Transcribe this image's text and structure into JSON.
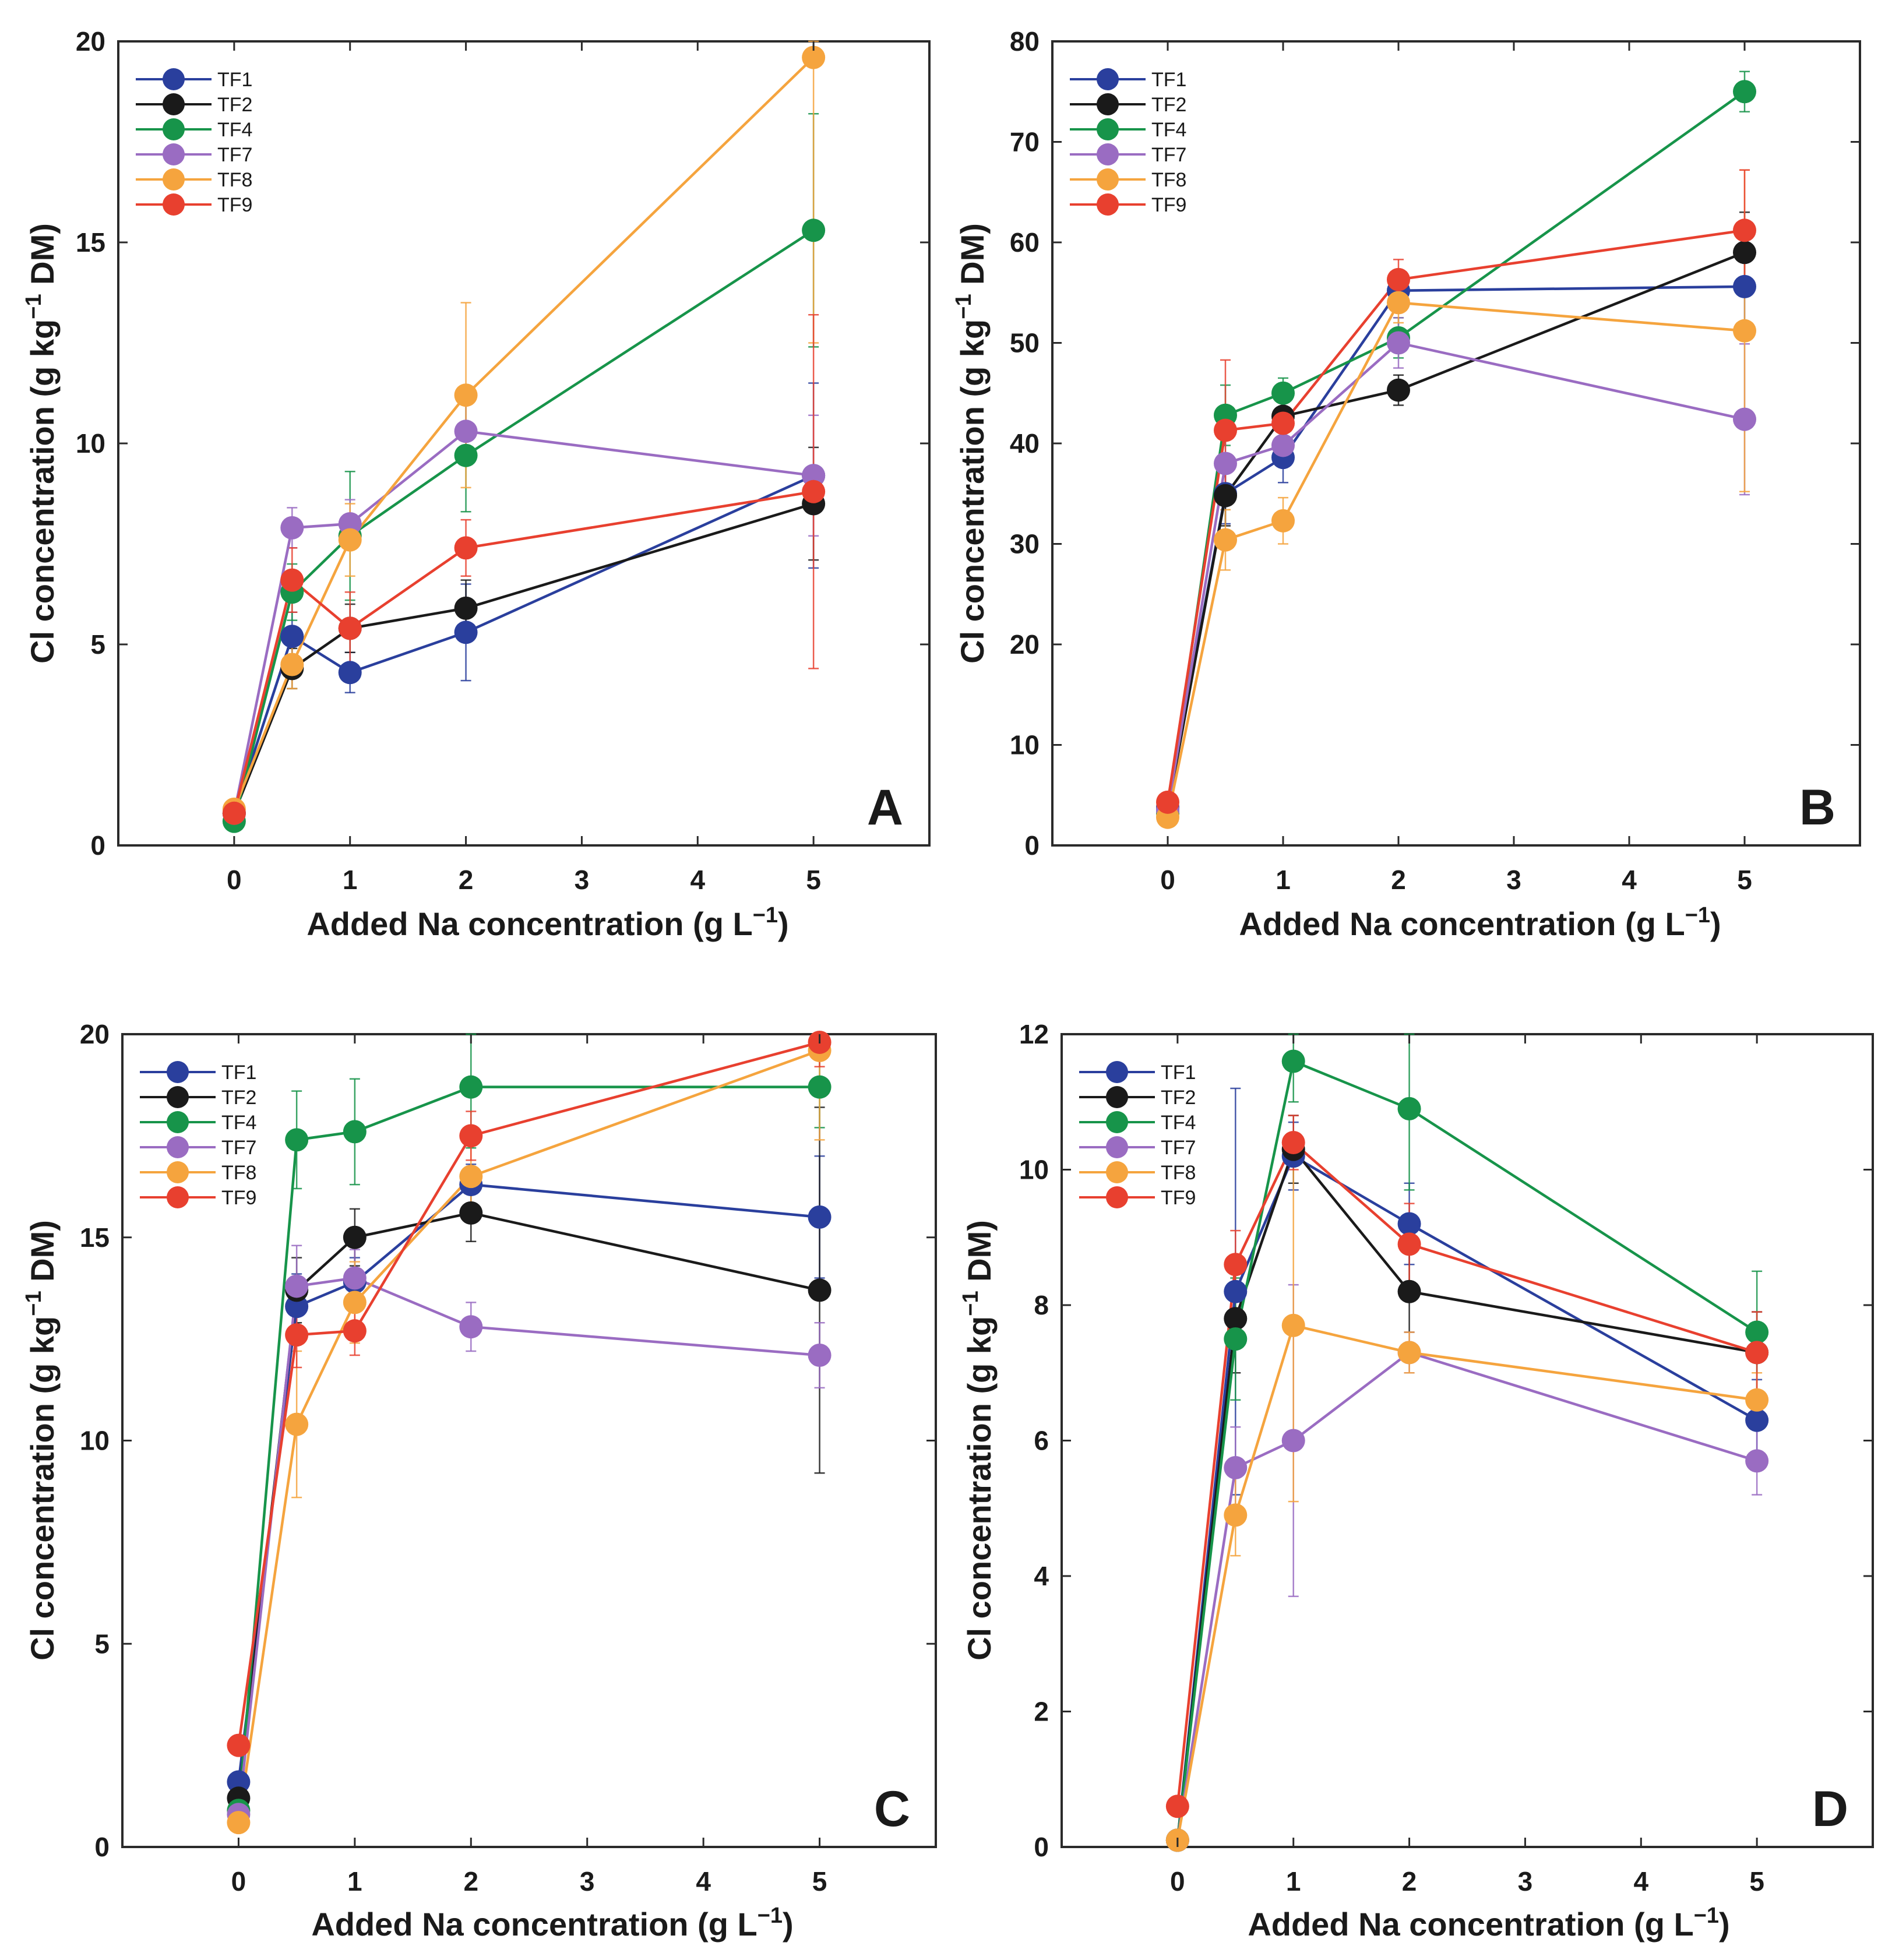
{
  "series_styles": [
    {
      "name": "TF1",
      "color": "#2a3f9d"
    },
    {
      "name": "TF2",
      "color": "#1a1a1a"
    },
    {
      "name": "TF4",
      "color": "#17944a"
    },
    {
      "name": "TF7",
      "color": "#9a6cc2"
    },
    {
      "name": "TF8",
      "color": "#f5a43e"
    },
    {
      "name": "TF9",
      "color": "#e8402f"
    }
  ],
  "chart_data": [
    {
      "panel": "A",
      "type": "line",
      "xlabel": "Added Na concentration (g L",
      "xlabel_sup": "−1",
      "xlabel_end": ")",
      "ylabel": "Cl concentration (g kg",
      "ylabel_sup": "−1",
      "ylabel_end": " DM)",
      "xlim": [
        -1,
        6
      ],
      "ylim": [
        0,
        20
      ],
      "xticks": [
        0,
        1,
        2,
        3,
        4,
        5
      ],
      "yticks": [
        0,
        5,
        10,
        15,
        20
      ],
      "legend_position": "top-left",
      "x": [
        0,
        0.5,
        1,
        2,
        5
      ],
      "series": [
        {
          "name": "TF1",
          "values": [
            0.8,
            5.2,
            4.3,
            5.3,
            9.2
          ],
          "errors": [
            0.1,
            0.6,
            0.5,
            1.2,
            2.3
          ]
        },
        {
          "name": "TF2",
          "values": [
            0.8,
            4.4,
            5.4,
            5.9,
            8.5
          ],
          "errors": [
            0.1,
            0.5,
            0.6,
            0.7,
            1.4
          ]
        },
        {
          "name": "TF4",
          "values": [
            0.6,
            6.3,
            7.7,
            9.7,
            15.3
          ],
          "errors": [
            0.1,
            0.7,
            1.6,
            1.4,
            2.9
          ]
        },
        {
          "name": "TF7",
          "values": [
            0.8,
            7.9,
            8.0,
            10.3,
            9.2
          ],
          "errors": [
            0.1,
            0.5,
            0.6,
            0.8,
            1.5
          ]
        },
        {
          "name": "TF8",
          "values": [
            0.9,
            4.5,
            7.6,
            11.2,
            19.6
          ],
          "errors": [
            0.1,
            0.6,
            0.9,
            2.3,
            7.1
          ]
        },
        {
          "name": "TF9",
          "values": [
            0.8,
            6.6,
            5.4,
            7.4,
            8.8
          ],
          "errors": [
            0.1,
            0.8,
            0.9,
            0.7,
            4.4
          ]
        }
      ]
    },
    {
      "panel": "B",
      "type": "line",
      "xlabel": "Added Na concentration (g L",
      "xlabel_sup": "−1",
      "xlabel_end": ")",
      "ylabel": "Cl concentration (g kg",
      "ylabel_sup": "−1",
      "ylabel_end": " DM)",
      "xlim": [
        -1,
        6
      ],
      "ylim": [
        0,
        80
      ],
      "xticks": [
        0,
        1,
        2,
        3,
        4,
        5
      ],
      "yticks": [
        0,
        10,
        20,
        30,
        40,
        50,
        60,
        70,
        80
      ],
      "legend_position": "top-left",
      "x": [
        0,
        0.5,
        1,
        2,
        5
      ],
      "series": [
        {
          "name": "TF1",
          "values": [
            3.8,
            35.0,
            38.6,
            55.2,
            55.6
          ],
          "errors": [
            0.4,
            3.0,
            2.5,
            2.0,
            5.0
          ]
        },
        {
          "name": "TF2",
          "values": [
            3.5,
            34.8,
            42.7,
            45.3,
            59.0
          ],
          "errors": [
            0.4,
            3.0,
            2.0,
            1.5,
            4.0
          ]
        },
        {
          "name": "TF4",
          "values": [
            3.2,
            42.8,
            45.0,
            50.5,
            75.0
          ],
          "errors": [
            0.4,
            3.0,
            1.5,
            2.0,
            2.0
          ]
        },
        {
          "name": "TF7",
          "values": [
            3.5,
            38.0,
            39.8,
            50.0,
            42.4
          ],
          "errors": [
            0.4,
            3.0,
            2.0,
            2.5,
            7.5
          ]
        },
        {
          "name": "TF8",
          "values": [
            2.8,
            30.4,
            32.3,
            54.0,
            51.2
          ],
          "errors": [
            0.4,
            3.0,
            2.3,
            2.0,
            16.0
          ]
        },
        {
          "name": "TF9",
          "values": [
            4.3,
            41.3,
            42.0,
            56.3,
            61.2
          ],
          "errors": [
            0.4,
            7.0,
            2.5,
            2.0,
            6.0
          ]
        }
      ]
    },
    {
      "panel": "C",
      "type": "line",
      "xlabel": "Added Na concentration (g L",
      "xlabel_sup": "−1",
      "xlabel_end": ")",
      "ylabel": "Cl concentration (g kg",
      "ylabel_sup": "−1",
      "ylabel_end": " DM)",
      "xlim": [
        -1,
        6
      ],
      "ylim": [
        0,
        20
      ],
      "xticks": [
        0,
        1,
        2,
        3,
        4,
        5
      ],
      "yticks": [
        0,
        5,
        10,
        15,
        20
      ],
      "legend_position": "top-left",
      "x": [
        0,
        0.5,
        1,
        2,
        5
      ],
      "series": [
        {
          "name": "TF1",
          "values": [
            1.6,
            13.3,
            13.9,
            16.3,
            15.5
          ],
          "errors": [
            0.2,
            0.8,
            0.6,
            0.5,
            1.5
          ]
        },
        {
          "name": "TF2",
          "values": [
            1.2,
            13.7,
            15.0,
            15.6,
            13.7
          ],
          "errors": [
            0.2,
            0.8,
            0.7,
            0.7,
            4.5
          ]
        },
        {
          "name": "TF4",
          "values": [
            0.9,
            17.4,
            17.6,
            18.7,
            18.7
          ],
          "errors": [
            0.2,
            1.2,
            1.3,
            1.5,
            1.0
          ]
        },
        {
          "name": "TF7",
          "values": [
            0.8,
            13.8,
            14.0,
            12.8,
            12.1
          ],
          "errors": [
            0.1,
            1.0,
            0.7,
            0.6,
            0.8
          ]
        },
        {
          "name": "TF8",
          "values": [
            0.6,
            10.4,
            13.4,
            16.5,
            19.6
          ],
          "errors": [
            0.1,
            1.8,
            1.0,
            1.0,
            2.2
          ]
        },
        {
          "name": "TF9",
          "values": [
            2.5,
            12.6,
            12.7,
            17.5,
            19.8
          ],
          "errors": [
            0.2,
            0.8,
            0.6,
            0.6,
            0.6
          ]
        }
      ]
    },
    {
      "panel": "D",
      "type": "line",
      "xlabel": "Added Na concentration (g L",
      "xlabel_sup": "−1",
      "xlabel_end": ")",
      "ylabel": "Cl concentration (g kg",
      "ylabel_sup": "−1",
      "ylabel_end": " DM)",
      "xlim": [
        -1,
        6
      ],
      "ylim": [
        0,
        12
      ],
      "xticks": [
        0,
        1,
        2,
        3,
        4,
        5
      ],
      "yticks": [
        0,
        2,
        4,
        6,
        8,
        10,
        12
      ],
      "legend_position": "top-left",
      "x": [
        0,
        0.5,
        1,
        2,
        5
      ],
      "series": [
        {
          "name": "TF1",
          "values": [
            0.1,
            8.2,
            10.2,
            9.2,
            6.3
          ],
          "errors": [
            0.05,
            3.0,
            0.5,
            0.6,
            0.6
          ]
        },
        {
          "name": "TF2",
          "values": [
            0.1,
            7.8,
            10.3,
            8.2,
            7.3
          ],
          "errors": [
            0.05,
            0.8,
            0.5,
            0.6,
            0.6
          ]
        },
        {
          "name": "TF4",
          "values": [
            0.1,
            7.5,
            11.6,
            10.9,
            7.6
          ],
          "errors": [
            0.05,
            0.9,
            0.6,
            1.2,
            0.9
          ]
        },
        {
          "name": "TF7",
          "values": [
            0.1,
            5.6,
            6.0,
            7.3,
            5.7
          ],
          "errors": [
            0.05,
            0.6,
            2.3,
            0.3,
            0.5
          ]
        },
        {
          "name": "TF8",
          "values": [
            0.1,
            4.9,
            7.7,
            7.3,
            6.6
          ],
          "errors": [
            0.05,
            0.6,
            2.6,
            0.3,
            0.4
          ]
        },
        {
          "name": "TF9",
          "values": [
            0.6,
            8.6,
            10.4,
            8.9,
            7.3
          ],
          "errors": [
            0.05,
            0.5,
            0.4,
            0.6,
            0.6
          ]
        }
      ]
    }
  ]
}
